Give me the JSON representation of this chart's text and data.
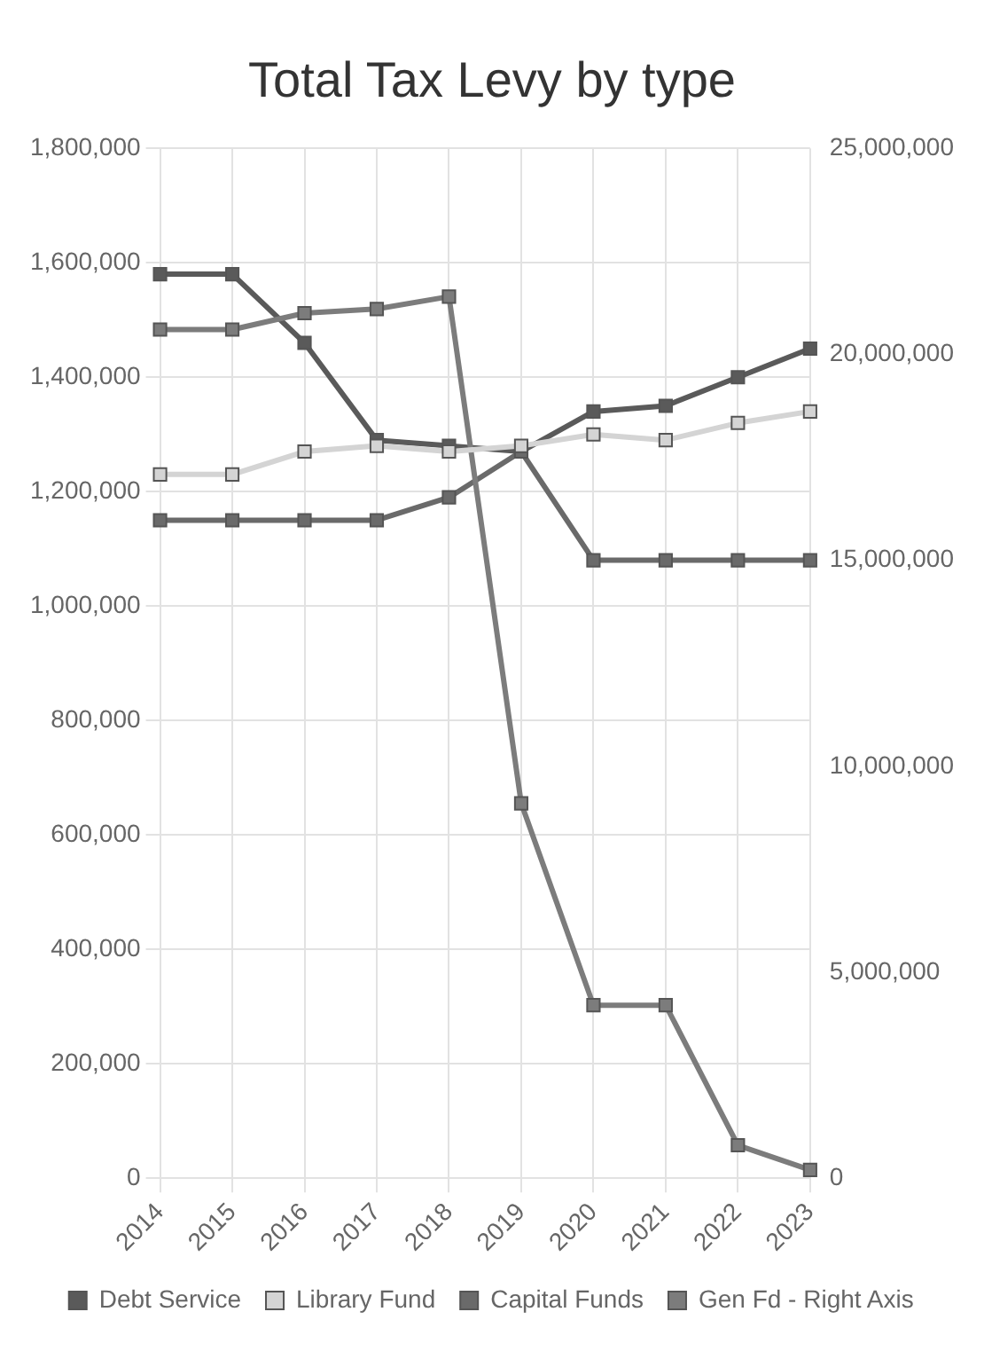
{
  "chart_data": {
    "type": "line",
    "title": "Total Tax Levy by type",
    "categories": [
      "2014",
      "2015",
      "2016",
      "2017",
      "2018",
      "2019",
      "2020",
      "2021",
      "2022",
      "2023"
    ],
    "series": [
      {
        "name": "Debt Service",
        "color": "#5a5a5a",
        "values": [
          1580000,
          1580000,
          1460000,
          1290000,
          1280000,
          1270000,
          1340000,
          1350000,
          1400000,
          1450000
        ]
      },
      {
        "name": "Library Fund",
        "color": "#d4d4d4",
        "values": [
          1230000,
          1230000,
          1270000,
          1280000,
          1270000,
          1280000,
          1300000,
          1290000,
          1320000,
          1340000
        ]
      },
      {
        "name": "Capital Funds",
        "color": "#6a6a6a",
        "values": [
          1150000,
          1150000,
          1150000,
          1150000,
          1190000,
          1270000,
          1080000,
          1080000,
          1080000,
          1080000
        ]
      },
      {
        "name": "Gen Fd - Right Axis",
        "color": "#7c7c7c",
        "axis": "y2",
        "values": [
          20600000,
          20600000,
          21000000,
          21100000,
          21400000,
          9100000,
          4200000,
          4200000,
          800000,
          200000
        ]
      }
    ],
    "ylim": [
      0,
      1800000
    ],
    "yticks": [
      0,
      {
        "value": 200000,
        "label": "200,000"
      },
      {
        "value": 400000,
        "label": "400,000"
      },
      {
        "value": 600000,
        "label": "600,000"
      },
      {
        "value": 800000,
        "label": "800,000"
      },
      {
        "value": 1000000,
        "label": "1,000,000"
      },
      {
        "value": 1200000,
        "label": "1,200,000"
      },
      {
        "value": 1400000,
        "label": "1,400,000"
      },
      {
        "value": 1600000,
        "label": "1,600,000"
      },
      {
        "value": 1800000,
        "label": "1,800,000"
      }
    ],
    "y2lim": [
      0,
      25000000
    ],
    "y2ticks": [
      0,
      {
        "value": 5000000,
        "label": "5,000,000"
      },
      {
        "value": 10000000,
        "label": "10,000,000"
      },
      {
        "value": 15000000,
        "label": "15,000,000"
      },
      {
        "value": 20000000,
        "label": "20,000,000"
      },
      {
        "value": 25000000,
        "label": "25,000,000"
      }
    ],
    "grid": true,
    "legend": "bottom",
    "marker": "square",
    "line_style": "solid"
  }
}
